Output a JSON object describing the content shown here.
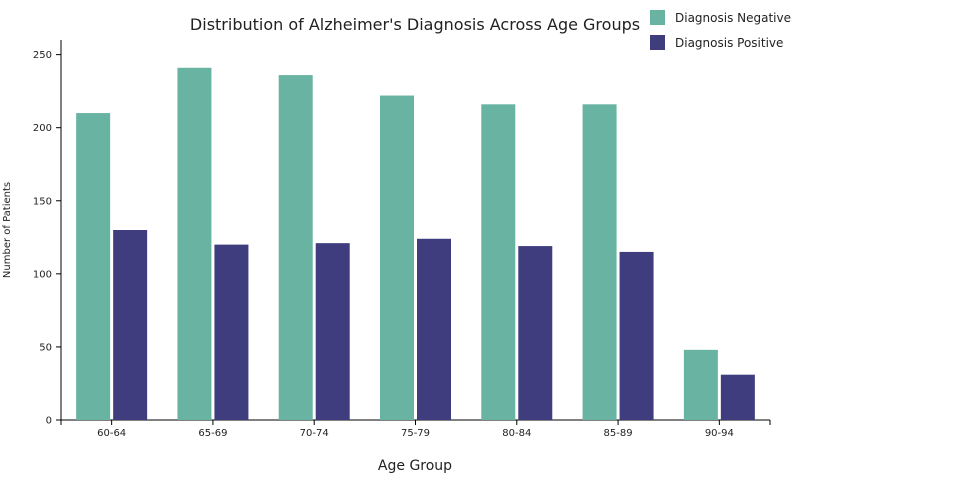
{
  "chart_data": {
    "type": "bar",
    "title": "Distribution of Alzheimer's Diagnosis Across Age Groups",
    "xlabel": "Age Group",
    "ylabel": "Number of Patients",
    "categories": [
      "60-64",
      "65-69",
      "70-74",
      "75-79",
      "80-84",
      "85-89",
      "90-94"
    ],
    "ylim": [
      0,
      260
    ],
    "yticks": [
      0,
      50,
      100,
      150,
      200,
      250
    ],
    "series": [
      {
        "name": "Diagnosis Negative",
        "color": "#69b3a2",
        "values": [
          210,
          241,
          236,
          222,
          216,
          216,
          48
        ]
      },
      {
        "name": "Diagnosis Positive",
        "color": "#3f3d7e",
        "values": [
          130,
          120,
          121,
          124,
          119,
          115,
          31
        ]
      }
    ],
    "legend": "top-right"
  }
}
